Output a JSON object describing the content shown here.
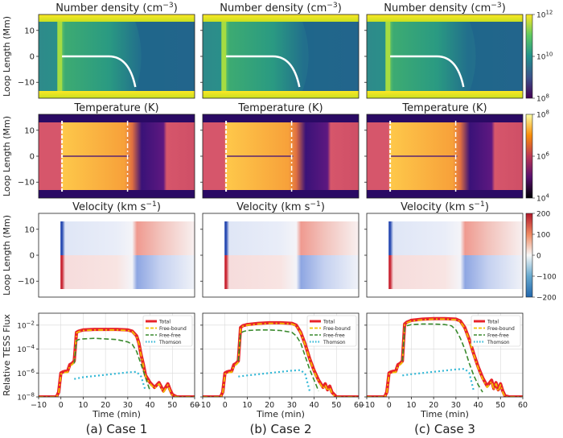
{
  "figure": {
    "case_labels": [
      "(a) Case 1",
      "(b) Case 2",
      "(c) Case 3"
    ]
  },
  "rows": {
    "density": {
      "title": "Number density (cm$^{-3}$)",
      "title_main": "Number density (cm",
      "title_sup": "−3",
      "title_end": ")",
      "ylabel": "Loop Length (Mm)",
      "yticks": [
        "10",
        "0",
        "−10"
      ],
      "colorbar": {
        "scale": "log",
        "ticks": [
          "10",
          "10",
          "10"
        ],
        "exponents": [
          "12",
          "10",
          "8"
        ],
        "colors": [
          "#fde725",
          "#5ec962",
          "#21918c",
          "#3b528b",
          "#440154"
        ]
      }
    },
    "temperature": {
      "title": "Temperature (K)",
      "ylabel": "Loop Length (Mm)",
      "yticks": [
        "10",
        "0",
        "−10"
      ],
      "colorbar": {
        "scale": "log",
        "ticks": [
          "10",
          "10",
          "10"
        ],
        "exponents": [
          "8",
          "6",
          "4"
        ],
        "colors": [
          "#fcffa4",
          "#f98e09",
          "#bc3754",
          "#57106e",
          "#000004"
        ]
      }
    },
    "velocity": {
      "title_main": "Velocity (km s",
      "title_sup": "−1",
      "title_end": ")",
      "ylabel": "Loop Length (Mm)",
      "yticks": [
        "10",
        "0",
        "−10"
      ],
      "colorbar": {
        "scale": "linear",
        "ticks": [
          "200",
          "100",
          "0",
          "−100",
          "−200"
        ],
        "colors": [
          "#b2182b",
          "#ef8a62",
          "#f7f7f7",
          "#67a9cf",
          "#2166ac"
        ]
      }
    }
  },
  "chart_data": {
    "type": "line",
    "ylabel": "Relative TESS Flux",
    "xlabel": "Time (min)",
    "xlim": [
      -10,
      60
    ],
    "xticks": [
      "−10",
      "0",
      "10",
      "20",
      "30",
      "40",
      "50",
      "60"
    ],
    "ylim_exponent": [
      -8,
      -1
    ],
    "yticks": [
      {
        "base": "10",
        "exp": "−2"
      },
      {
        "base": "10",
        "exp": "−4"
      },
      {
        "base": "10",
        "exp": "−6"
      },
      {
        "base": "10",
        "exp": "−8"
      }
    ],
    "yscale": "log",
    "grid": true,
    "legend": {
      "position": "top-right",
      "entries": [
        "Total",
        "Free-bound",
        "Free-free",
        "Thomson"
      ]
    },
    "series_colors": {
      "Total": "#e8232a",
      "Free-bound": "#f2c200",
      "Free-free": "#3a8a2e",
      "Thomson": "#33b8d6"
    },
    "panels": [
      {
        "case": "Case 1",
        "series": [
          {
            "name": "Total",
            "x": [
              -10,
              -2,
              -1,
              0,
              1,
              2,
              3,
              4,
              5,
              6,
              7,
              8,
              10,
              15,
              20,
              25,
              30,
              32,
              34,
              35,
              36,
              37,
              38,
              40,
              42,
              44,
              46,
              47,
              48,
              49,
              50,
              52,
              54,
              56,
              60
            ],
            "y_exp": [
              -8,
              -8,
              -7.6,
              -6,
              -5.9,
              -5.85,
              -5.85,
              -5.3,
              -5.2,
              -5,
              -2.6,
              -2.5,
              -2.4,
              -2.35,
              -2.35,
              -2.35,
              -2.4,
              -2.5,
              -2.9,
              -3.5,
              -4.5,
              -5.3,
              -6.2,
              -6.8,
              -7.2,
              -6.8,
              -7.5,
              -7.2,
              -6.9,
              -7.4,
              -7.8,
              -8,
              -8,
              -8,
              -8
            ]
          },
          {
            "name": "Free-bound",
            "x": [
              -10,
              -2,
              -1,
              0,
              1,
              2,
              3,
              4,
              5,
              6,
              7,
              8,
              10,
              15,
              20,
              25,
              30,
              32,
              34,
              35,
              36,
              37,
              38,
              40,
              42,
              44,
              46,
              47,
              48,
              49,
              50,
              52,
              54,
              56,
              60
            ],
            "y_exp": [
              -8,
              -8,
              -7.7,
              -6.1,
              -6,
              -5.95,
              -5.95,
              -5.4,
              -5.3,
              -5.1,
              -2.65,
              -2.55,
              -2.45,
              -2.4,
              -2.4,
              -2.4,
              -2.45,
              -2.55,
              -2.95,
              -3.55,
              -4.55,
              -5.4,
              -6.3,
              -6.9,
              -7.3,
              -6.9,
              -7.6,
              -7.3,
              -7,
              -7.5,
              -7.9,
              -8,
              -8,
              -8,
              -8
            ]
          },
          {
            "name": "Free-free",
            "x": [
              6,
              7,
              8,
              10,
              15,
              20,
              25,
              30,
              32,
              34,
              36,
              38,
              40
            ],
            "y_exp": [
              -5.2,
              -3.3,
              -3.2,
              -3.15,
              -3.1,
              -3.15,
              -3.2,
              -3.4,
              -3.6,
              -4.2,
              -5.3,
              -6.4,
              -7.5
            ]
          },
          {
            "name": "Thomson",
            "x": [
              6,
              10,
              15,
              20,
              25,
              30,
              34,
              36,
              38
            ],
            "y_exp": [
              -6.5,
              -6.35,
              -6.25,
              -6.15,
              -6.05,
              -5.95,
              -5.9,
              -6.3,
              -7.5
            ]
          }
        ]
      },
      {
        "case": "Case 2",
        "series": [
          {
            "name": "Total",
            "x": [
              -10,
              -2,
              -1,
              0,
              1,
              2,
              3,
              4,
              5,
              6,
              7,
              8,
              10,
              15,
              20,
              25,
              30,
              32,
              34,
              36,
              38,
              40,
              42,
              44,
              45,
              46,
              47,
              48,
              49,
              50,
              52,
              54,
              56,
              60
            ],
            "y_exp": [
              -8,
              -8,
              -7.6,
              -6,
              -5.9,
              -5.85,
              -5.85,
              -5.3,
              -5.2,
              -5,
              -2.2,
              -2.05,
              -1.95,
              -1.85,
              -1.8,
              -1.8,
              -1.85,
              -2,
              -2.6,
              -3.6,
              -4.8,
              -5.8,
              -6.6,
              -7.2,
              -6.9,
              -7.4,
              -7.1,
              -7.6,
              -7.8,
              -8,
              -8,
              -8,
              -8,
              -8
            ]
          },
          {
            "name": "Free-bound",
            "x": [
              -10,
              -2,
              -1,
              0,
              1,
              2,
              3,
              4,
              5,
              6,
              7,
              8,
              10,
              15,
              20,
              25,
              30,
              32,
              34,
              36,
              38,
              40,
              42,
              44,
              45,
              46,
              47,
              48,
              49,
              50,
              52,
              54,
              56,
              60
            ],
            "y_exp": [
              -8,
              -8,
              -7.7,
              -6.1,
              -6,
              -5.95,
              -5.95,
              -5.4,
              -5.3,
              -5.1,
              -2.25,
              -2.1,
              -2,
              -1.9,
              -1.85,
              -1.85,
              -1.9,
              -2.05,
              -2.65,
              -3.65,
              -4.85,
              -5.9,
              -6.7,
              -7.3,
              -7,
              -7.5,
              -7.2,
              -7.7,
              -7.9,
              -8,
              -8,
              -8,
              -8,
              -8
            ]
          },
          {
            "name": "Free-free",
            "x": [
              6,
              7,
              8,
              10,
              15,
              20,
              25,
              30,
              32,
              34,
              36,
              38,
              40,
              42
            ],
            "y_exp": [
              -5,
              -2.7,
              -2.55,
              -2.45,
              -2.4,
              -2.4,
              -2.45,
              -2.6,
              -2.9,
              -3.5,
              -4.6,
              -5.7,
              -6.6,
              -7.5
            ]
          },
          {
            "name": "Thomson",
            "x": [
              6,
              10,
              15,
              20,
              25,
              30,
              34,
              36,
              38
            ],
            "y_exp": [
              -6.3,
              -6.2,
              -6.1,
              -6,
              -5.9,
              -5.8,
              -5.75,
              -6.1,
              -7.5
            ]
          }
        ]
      },
      {
        "case": "Case 3",
        "series": [
          {
            "name": "Total",
            "x": [
              -10,
              -2,
              -1,
              0,
              1,
              2,
              3,
              4,
              5,
              6,
              7,
              8,
              10,
              15,
              20,
              25,
              30,
              32,
              34,
              36,
              38,
              40,
              42,
              44,
              46,
              47,
              48,
              49,
              50,
              51,
              52,
              54,
              56,
              60
            ],
            "y_exp": [
              -8,
              -8,
              -7.6,
              -6,
              -5.9,
              -5.85,
              -5.85,
              -5.3,
              -5.2,
              -5,
              -1.9,
              -1.75,
              -1.6,
              -1.5,
              -1.45,
              -1.45,
              -1.5,
              -1.65,
              -2.2,
              -3.2,
              -4.4,
              -5.5,
              -6.4,
              -7.1,
              -6.6,
              -7.3,
              -6.8,
              -7.4,
              -6.9,
              -7.5,
              -7.9,
              -8,
              -8,
              -8
            ]
          },
          {
            "name": "Free-bound",
            "x": [
              -10,
              -2,
              -1,
              0,
              1,
              2,
              3,
              4,
              5,
              6,
              7,
              8,
              10,
              15,
              20,
              25,
              30,
              32,
              34,
              36,
              38,
              40,
              42,
              44,
              46,
              47,
              48,
              49,
              50,
              51,
              52,
              54,
              56,
              60
            ],
            "y_exp": [
              -8,
              -8,
              -7.7,
              -6.1,
              -6,
              -5.95,
              -5.95,
              -5.4,
              -5.3,
              -5.1,
              -1.95,
              -1.8,
              -1.65,
              -1.55,
              -1.5,
              -1.5,
              -1.55,
              -1.7,
              -2.25,
              -3.25,
              -4.45,
              -5.6,
              -6.5,
              -7.2,
              -6.7,
              -7.4,
              -6.9,
              -7.5,
              -7,
              -7.6,
              -8,
              -8,
              -8,
              -8
            ]
          },
          {
            "name": "Free-free",
            "x": [
              6,
              7,
              8,
              10,
              15,
              20,
              25,
              28,
              30,
              32,
              34,
              36,
              38,
              40,
              42
            ],
            "y_exp": [
              -5,
              -2.2,
              -2.05,
              -1.95,
              -1.9,
              -1.9,
              -1.95,
              -2.05,
              -2.4,
              -3.1,
              -4,
              -5.2,
              -6.2,
              -7,
              -7.6
            ]
          },
          {
            "name": "Thomson",
            "x": [
              6,
              10,
              15,
              20,
              25,
              30,
              34,
              36,
              38
            ],
            "y_exp": [
              -6.2,
              -6.1,
              -6,
              -5.9,
              -5.8,
              -5.7,
              -5.65,
              -6,
              -7.5
            ]
          }
        ]
      }
    ]
  }
}
